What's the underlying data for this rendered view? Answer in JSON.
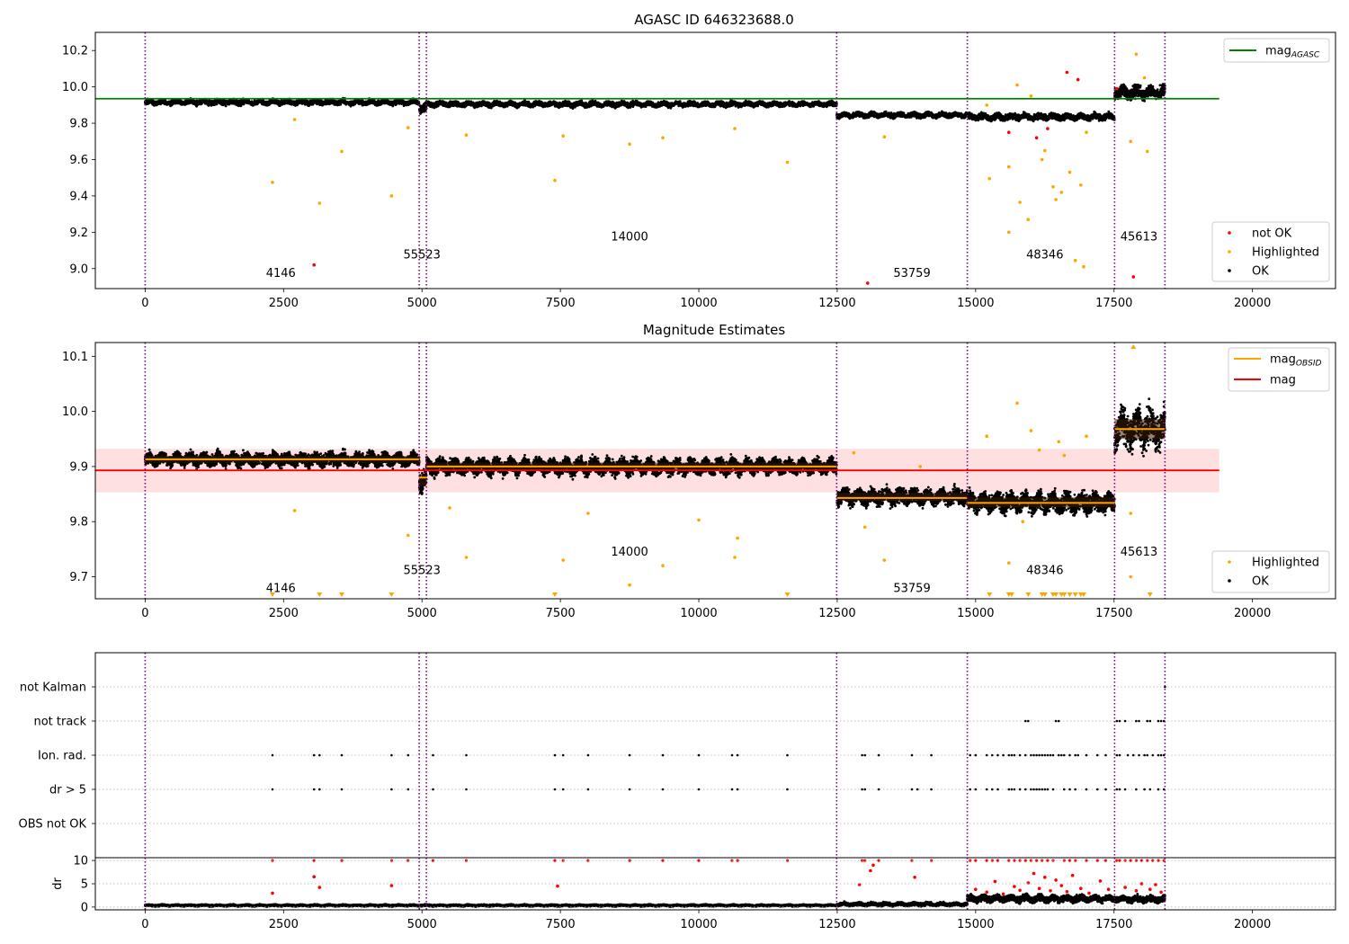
{
  "chart_data": [
    {
      "type": "scatter",
      "title": "AGASC ID 646323688.0",
      "xlabel": "",
      "ylabel": "",
      "xlim": [
        -900,
        21500
      ],
      "ylim": [
        8.89,
        10.3
      ],
      "xticks": [
        0,
        2500,
        5000,
        7500,
        10000,
        12500,
        15000,
        17500,
        20000
      ],
      "yticks": [
        9.0,
        9.2,
        9.4,
        9.6,
        9.8,
        10.0,
        10.2
      ],
      "ytick_decimals": 1,
      "grid": false,
      "obsid_boundaries": [
        0,
        4950,
        5080,
        12490,
        14850,
        17510,
        18420
      ],
      "obsid_labels": [
        {
          "text": "4146",
          "x": 2450,
          "y": 8.955
        },
        {
          "text": "55523",
          "x": 5000,
          "y": 9.055
        },
        {
          "text": "14000",
          "x": 8750,
          "y": 9.155
        },
        {
          "text": "53759",
          "x": 13850,
          "y": 8.955
        },
        {
          "text": "48346",
          "x": 16250,
          "y": 9.055
        },
        {
          "text": "45613",
          "x": 17950,
          "y": 9.155
        }
      ],
      "reference_lines": [
        {
          "name": "mag_AGASC",
          "y": 9.935,
          "x_range": [
            -900,
            19400
          ],
          "color": "#008000"
        }
      ],
      "legend_lines": [
        {
          "label": "mag",
          "sub": "AGASC",
          "color": "#008000"
        }
      ],
      "legend_markers": [
        {
          "label": "not OK",
          "color": "#ff0000"
        },
        {
          "label": "Highlighted",
          "color": "#ffa500"
        },
        {
          "label": "OK",
          "color": "#000000"
        }
      ],
      "segments": [
        {
          "x0": 0,
          "x1": 4950,
          "mean": 9.915,
          "spread": 0.012
        },
        {
          "x0": 4950,
          "x1": 5080,
          "mean": 9.885,
          "spread": 0.02
        },
        {
          "x0": 5080,
          "x1": 12490,
          "mean": 9.905,
          "spread": 0.012
        },
        {
          "x0": 12490,
          "x1": 14850,
          "mean": 9.845,
          "spread": 0.012
        },
        {
          "x0": 14850,
          "x1": 17510,
          "mean": 9.835,
          "spread": 0.015
        },
        {
          "x0": 17510,
          "x1": 18420,
          "mean": 9.97,
          "spread": 0.03
        }
      ],
      "highlighted_points": [
        [
          2300,
          9.475
        ],
        [
          2700,
          9.82
        ],
        [
          3150,
          9.36
        ],
        [
          3550,
          9.645
        ],
        [
          4450,
          9.4
        ],
        [
          4750,
          9.775
        ],
        [
          5800,
          9.735
        ],
        [
          7550,
          9.73
        ],
        [
          7400,
          9.485
        ],
        [
          8750,
          9.685
        ],
        [
          9350,
          9.72
        ],
        [
          10650,
          9.77
        ],
        [
          11600,
          9.585
        ],
        [
          13350,
          9.725
        ],
        [
          15250,
          9.495
        ],
        [
          15600,
          9.56
        ],
        [
          15800,
          9.365
        ],
        [
          15950,
          9.27
        ],
        [
          16200,
          9.6
        ],
        [
          16400,
          9.45
        ],
        [
          16450,
          9.38
        ],
        [
          16550,
          9.42
        ],
        [
          16700,
          9.53
        ],
        [
          16800,
          9.045
        ],
        [
          16950,
          9.01
        ],
        [
          17800,
          9.7
        ],
        [
          18100,
          9.645
        ],
        [
          18050,
          10.05
        ],
        [
          17900,
          10.18
        ],
        [
          15750,
          10.01
        ],
        [
          15200,
          9.9
        ],
        [
          16000,
          9.95
        ],
        [
          15600,
          9.2
        ],
        [
          16250,
          9.65
        ],
        [
          16900,
          9.46
        ],
        [
          17000,
          9.75
        ]
      ],
      "notok_points": [
        [
          3050,
          9.02
        ],
        [
          13050,
          8.92
        ],
        [
          17850,
          8.955
        ],
        [
          16650,
          10.08
        ],
        [
          16850,
          10.04
        ],
        [
          15600,
          9.75
        ],
        [
          16100,
          9.72
        ],
        [
          16300,
          9.77
        ],
        [
          17550,
          9.99
        ]
      ]
    },
    {
      "type": "scatter",
      "title": "Magnitude Estimates",
      "xlabel": "",
      "ylabel": "",
      "xlim": [
        -900,
        21500
      ],
      "ylim": [
        9.66,
        10.125
      ],
      "xticks": [
        0,
        2500,
        5000,
        7500,
        10000,
        12500,
        15000,
        17500,
        20000
      ],
      "yticks": [
        9.7,
        9.8,
        9.9,
        10.0,
        10.1
      ],
      "ytick_decimals": 1,
      "grid": false,
      "obsid_boundaries": [
        0,
        4950,
        5080,
        12490,
        14850,
        17510,
        18420
      ],
      "obsid_labels": [
        {
          "text": "4146",
          "x": 2450,
          "y": 9.672
        },
        {
          "text": "55523",
          "x": 5000,
          "y": 9.705
        },
        {
          "text": "14000",
          "x": 8750,
          "y": 9.738
        },
        {
          "text": "53759",
          "x": 13850,
          "y": 9.672
        },
        {
          "text": "48346",
          "x": 16250,
          "y": 9.705
        },
        {
          "text": "45613",
          "x": 17950,
          "y": 9.738
        }
      ],
      "mean_band": {
        "y0": 9.853,
        "y1": 9.932,
        "x_range": [
          -900,
          19400
        ],
        "color": "#ff0000",
        "opacity": 0.12
      },
      "reference_lines": [
        {
          "name": "mag",
          "y": 9.893,
          "x_range": [
            -900,
            19400
          ],
          "color": "#ff0000"
        }
      ],
      "obsid_means": [
        {
          "x0": 0,
          "x1": 4950,
          "y": 9.913
        },
        {
          "x0": 4950,
          "x1": 5080,
          "y": 9.88
        },
        {
          "x0": 5080,
          "x1": 12490,
          "y": 9.9
        },
        {
          "x0": 12490,
          "x1": 14850,
          "y": 9.843
        },
        {
          "x0": 14850,
          "x1": 17510,
          "y": 9.834
        },
        {
          "x0": 17510,
          "x1": 18420,
          "y": 9.968
        }
      ],
      "legend_lines": [
        {
          "label": "mag",
          "sub": "OBSID",
          "color": "#ffa500"
        },
        {
          "label": "mag",
          "sub": "",
          "color": "#ff0000"
        }
      ],
      "legend_markers": [
        {
          "label": "Highlighted",
          "color": "#ffa500"
        },
        {
          "label": "OK",
          "color": "#000000"
        }
      ],
      "segments": [
        {
          "x0": 0,
          "x1": 4950,
          "mean": 9.913,
          "spread": 0.01
        },
        {
          "x0": 4950,
          "x1": 5080,
          "mean": 9.875,
          "spread": 0.018
        },
        {
          "x0": 5080,
          "x1": 12490,
          "mean": 9.9,
          "spread": 0.012
        },
        {
          "x0": 12490,
          "x1": 14850,
          "mean": 9.845,
          "spread": 0.012
        },
        {
          "x0": 14850,
          "x1": 17510,
          "mean": 9.835,
          "spread": 0.015
        },
        {
          "x0": 17510,
          "x1": 18420,
          "mean": 9.968,
          "spread": 0.03
        }
      ],
      "highlighted_points": [
        [
          2700,
          9.82
        ],
        [
          4750,
          9.775
        ],
        [
          5500,
          9.825
        ],
        [
          5800,
          9.735
        ],
        [
          7550,
          9.73
        ],
        [
          8000,
          9.815
        ],
        [
          8750,
          9.685
        ],
        [
          9350,
          9.72
        ],
        [
          10000,
          9.803
        ],
        [
          10650,
          9.735
        ],
        [
          10700,
          9.77
        ],
        [
          13350,
          9.73
        ],
        [
          15200,
          9.955
        ],
        [
          15600,
          9.725
        ],
        [
          15750,
          10.015
        ],
        [
          15850,
          9.8
        ],
        [
          16000,
          9.965
        ],
        [
          16150,
          9.93
        ],
        [
          16500,
          9.945
        ],
        [
          16600,
          9.92
        ],
        [
          17000,
          9.955
        ],
        [
          17800,
          9.815
        ],
        [
          17800,
          9.7
        ],
        [
          14000,
          9.9
        ],
        [
          12800,
          9.925
        ],
        [
          13000,
          9.79
        ]
      ],
      "below_limit_markers": [
        2300,
        3150,
        3550,
        4450,
        7400,
        11600,
        15250,
        15600,
        15650,
        15950,
        16200,
        16250,
        16400,
        16450,
        16550,
        16600,
        16700,
        16800,
        16900,
        16950,
        18150
      ],
      "above_limit_markers": [
        17850
      ]
    },
    {
      "type": "scatter",
      "title": "",
      "xlabel": "",
      "ylabel": "",
      "xlim": [
        -900,
        21500
      ],
      "categories": [
        "not Kalman",
        "not track",
        "Ion. rad.",
        "dr > 5",
        "OBS not OK"
      ],
      "grid": true,
      "obsid_boundaries": [
        0,
        4950,
        5080,
        12490,
        14850,
        17510,
        18420
      ],
      "flag_events": {
        "not Kalman": [
          18420
        ],
        "not track": [
          15900,
          15950,
          16450,
          16500,
          17550,
          17600,
          17700,
          17900,
          17950,
          18100,
          18150,
          18300,
          18350,
          18400
        ],
        "Ion. rad.": [
          2300,
          3050,
          3150,
          3550,
          4450,
          4750,
          5200,
          5800,
          7400,
          7550,
          8000,
          8750,
          9350,
          10000,
          10600,
          10700,
          11600,
          12950,
          13000,
          13250,
          13850,
          14200,
          14900,
          15000,
          15200,
          15300,
          15400,
          15500,
          15600,
          15650,
          15700,
          15800,
          15900,
          16000,
          16050,
          16100,
          16150,
          16200,
          16250,
          16300,
          16350,
          16400,
          16500,
          16550,
          16600,
          16700,
          16800,
          16850,
          17000,
          17200,
          17350,
          17550,
          17600,
          17750,
          17850,
          17950,
          18050,
          18100,
          18200,
          18300,
          18350,
          18400
        ],
        "dr > 5": [
          2300,
          3050,
          3150,
          3550,
          4450,
          4750,
          5200,
          5800,
          7400,
          7550,
          8000,
          8750,
          9350,
          10000,
          10600,
          10700,
          11600,
          12950,
          13000,
          13250,
          13850,
          13950,
          14200,
          14900,
          15000,
          15200,
          15300,
          15400,
          15600,
          15650,
          15700,
          15800,
          15900,
          16000,
          16050,
          16100,
          16150,
          16200,
          16250,
          16300,
          16400,
          16600,
          16700,
          16800,
          17000,
          17200,
          17350,
          17550,
          17600,
          17700,
          17900,
          18050,
          18150,
          18300,
          18400
        ],
        "OBS not OK": []
      }
    },
    {
      "type": "scatter",
      "title": "",
      "xlabel": "",
      "ylabel": "dr",
      "xlim": [
        -900,
        21500
      ],
      "ylim": [
        -0.6,
        10.6
      ],
      "yticks": [
        0,
        5,
        10
      ],
      "ytick_decimals": 0,
      "xticks": [
        0,
        2500,
        5000,
        7500,
        10000,
        12500,
        15000,
        17500,
        20000
      ],
      "grid": true,
      "obsid_boundaries": [
        0,
        4950,
        5080,
        12490,
        14850,
        17510,
        18420
      ],
      "segments": [
        {
          "x0": 0,
          "x1": 12490,
          "mean": 0.35,
          "spread": 0.15
        },
        {
          "x0": 12490,
          "x1": 14850,
          "mean": 0.6,
          "spread": 0.3
        },
        {
          "x0": 14850,
          "x1": 17510,
          "mean": 1.8,
          "spread": 0.6
        },
        {
          "x0": 17510,
          "x1": 18420,
          "mean": 1.7,
          "spread": 0.6
        }
      ],
      "capped_red": [
        2300,
        3050,
        3550,
        4450,
        4750,
        5200,
        5800,
        7400,
        7550,
        8000,
        8750,
        9350,
        10000,
        10600,
        10700,
        11600,
        12950,
        13000,
        13250,
        13850,
        14200,
        14900,
        15000,
        15200,
        15300,
        15400,
        15600,
        15700,
        15800,
        15900,
        16000,
        16100,
        16200,
        16300,
        16400,
        16600,
        16700,
        16800,
        17000,
        17200,
        17350,
        17550,
        17600,
        17700,
        17800,
        17900,
        18000,
        18100,
        18200,
        18300,
        18400
      ],
      "red_points": [
        [
          3050,
          6.5
        ],
        [
          3150,
          4.2
        ],
        [
          2300,
          3.0
        ],
        [
          4450,
          4.6
        ],
        [
          7450,
          4.5
        ],
        [
          12900,
          4.8
        ],
        [
          13100,
          7.8
        ],
        [
          13150,
          9.0
        ],
        [
          13900,
          6.4
        ],
        [
          15000,
          3.8
        ],
        [
          15200,
          3.2
        ],
        [
          15350,
          5.5
        ],
        [
          15500,
          2.8
        ],
        [
          15700,
          4.4
        ],
        [
          15800,
          3.6
        ],
        [
          15950,
          5.2
        ],
        [
          16050,
          7.2
        ],
        [
          16150,
          4.0
        ],
        [
          16250,
          6.4
        ],
        [
          16350,
          3.5
        ],
        [
          16450,
          5.8
        ],
        [
          16550,
          4.6
        ],
        [
          16650,
          3.3
        ],
        [
          16750,
          6.8
        ],
        [
          16900,
          4.0
        ],
        [
          17050,
          3.0
        ],
        [
          17250,
          5.6
        ],
        [
          17400,
          3.8
        ],
        [
          17700,
          4.2
        ],
        [
          17900,
          3.5
        ],
        [
          18000,
          5.0
        ],
        [
          18150,
          3.8
        ],
        [
          18250,
          4.8
        ],
        [
          18350,
          3.2
        ]
      ]
    }
  ]
}
